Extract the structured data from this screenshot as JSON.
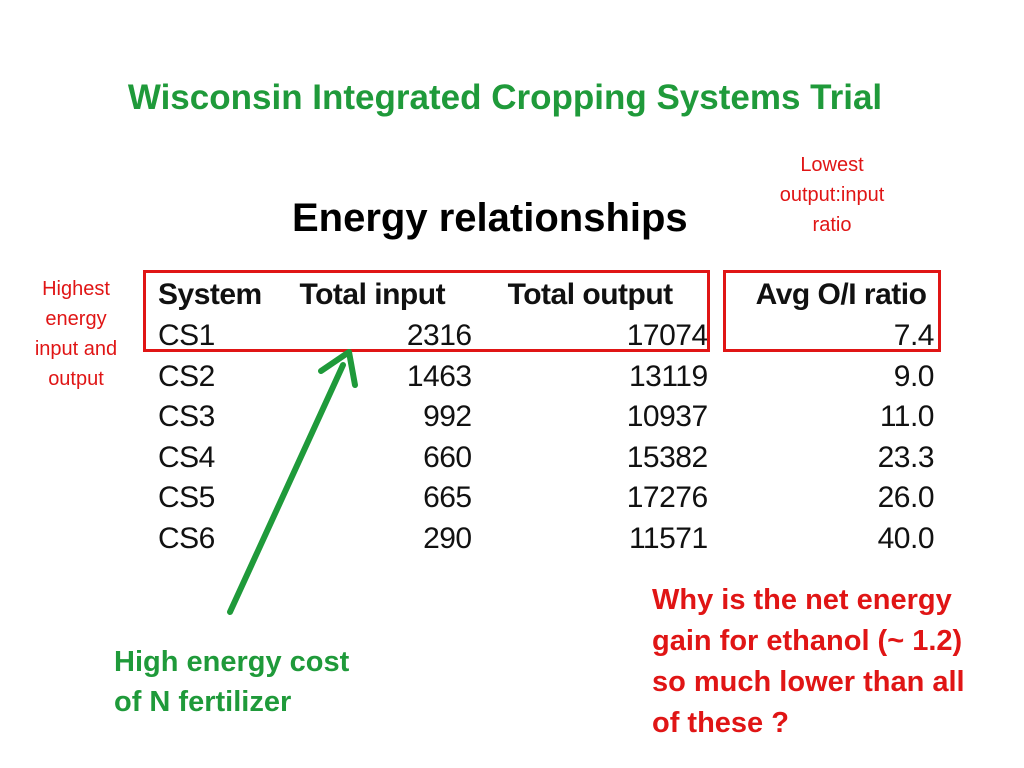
{
  "title": "Wisconsin Integrated Cropping Systems Trial",
  "subtitle": "Energy relationships",
  "notes": {
    "lowest": [
      "Lowest",
      "output:input",
      "ratio"
    ],
    "highest": [
      "Highest",
      "energy",
      "input and",
      "output"
    ],
    "fertilizer": [
      "High energy cost",
      "of N fertilizer"
    ],
    "ethanol": [
      "Why is the net energy",
      "gain for ethanol (~ 1.2)",
      "so much lower than all",
      "of these ?"
    ]
  },
  "table": {
    "headers": [
      "System",
      "Total input",
      "Total output",
      "Avg O/I ratio"
    ],
    "rows": [
      [
        "CS1",
        "2316",
        "17074",
        "7.4"
      ],
      [
        "CS2",
        "1463",
        "13119",
        "9.0"
      ],
      [
        "CS3",
        "992",
        "10937",
        "11.0"
      ],
      [
        "CS4",
        "660",
        "15382",
        "23.3"
      ],
      [
        "CS5",
        "665",
        "17276",
        "26.0"
      ],
      [
        "CS6",
        "290",
        "11571",
        "40.0"
      ]
    ]
  },
  "colors": {
    "title_green": "#1f9a3a",
    "highlight_red": "#e01515",
    "arrow_green": "#1f9a3a"
  }
}
